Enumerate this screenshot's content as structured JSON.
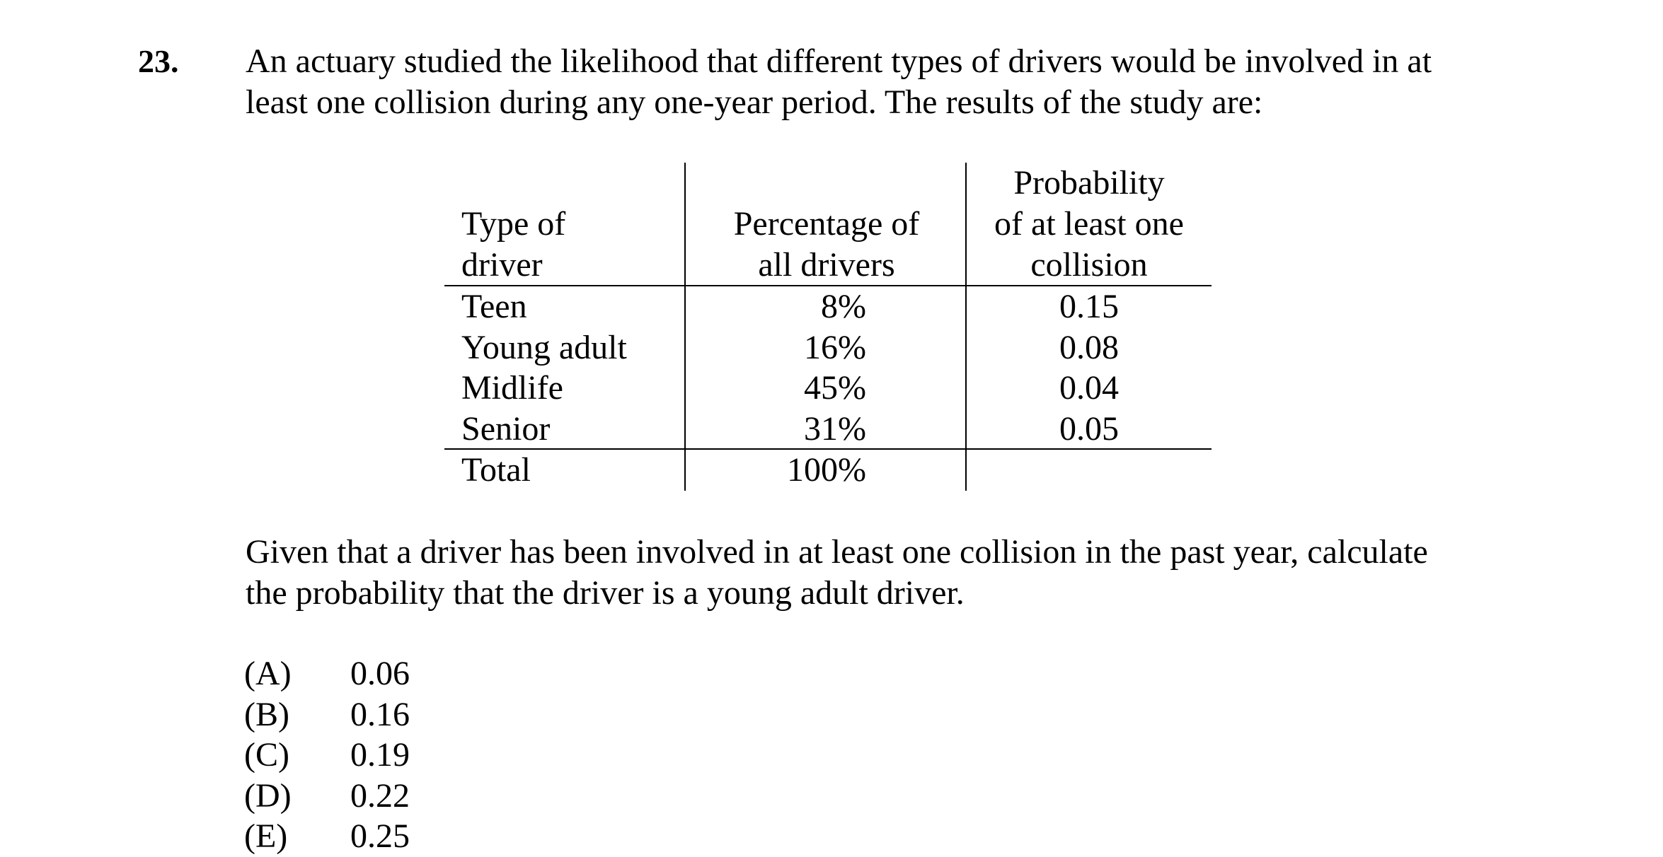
{
  "question": {
    "number": "23.",
    "intro_lines": [
      "An actuary studied the likelihood that different types of drivers would be involved in at",
      "least one collision during any one-year period.  The results of the study are:"
    ],
    "table": {
      "headers": {
        "type": [
          "Type of",
          "driver"
        ],
        "percentage": [
          "Percentage of",
          "all drivers"
        ],
        "probability": [
          "Probability",
          "of at least one",
          "collision"
        ]
      },
      "rows": [
        {
          "type": "Teen",
          "percentage": "8%",
          "probability": "0.15"
        },
        {
          "type": "Young adult",
          "percentage": "16%",
          "probability": "0.08"
        },
        {
          "type": "Midlife",
          "percentage": "45%",
          "probability": "0.04"
        },
        {
          "type": "Senior",
          "percentage": "31%",
          "probability": "0.05"
        }
      ],
      "total": {
        "type": "Total",
        "percentage": "100%",
        "probability": ""
      }
    },
    "prompt_lines": [
      "Given that a driver has been involved in at least one collision in the past year, calculate",
      "the probability that the driver is a young adult driver."
    ],
    "choices": [
      {
        "letter": "(A)",
        "value": "0.06"
      },
      {
        "letter": "(B)",
        "value": "0.16"
      },
      {
        "letter": "(C)",
        "value": "0.19"
      },
      {
        "letter": "(D)",
        "value": "0.22"
      },
      {
        "letter": "(E)",
        "value": "0.25"
      }
    ]
  }
}
